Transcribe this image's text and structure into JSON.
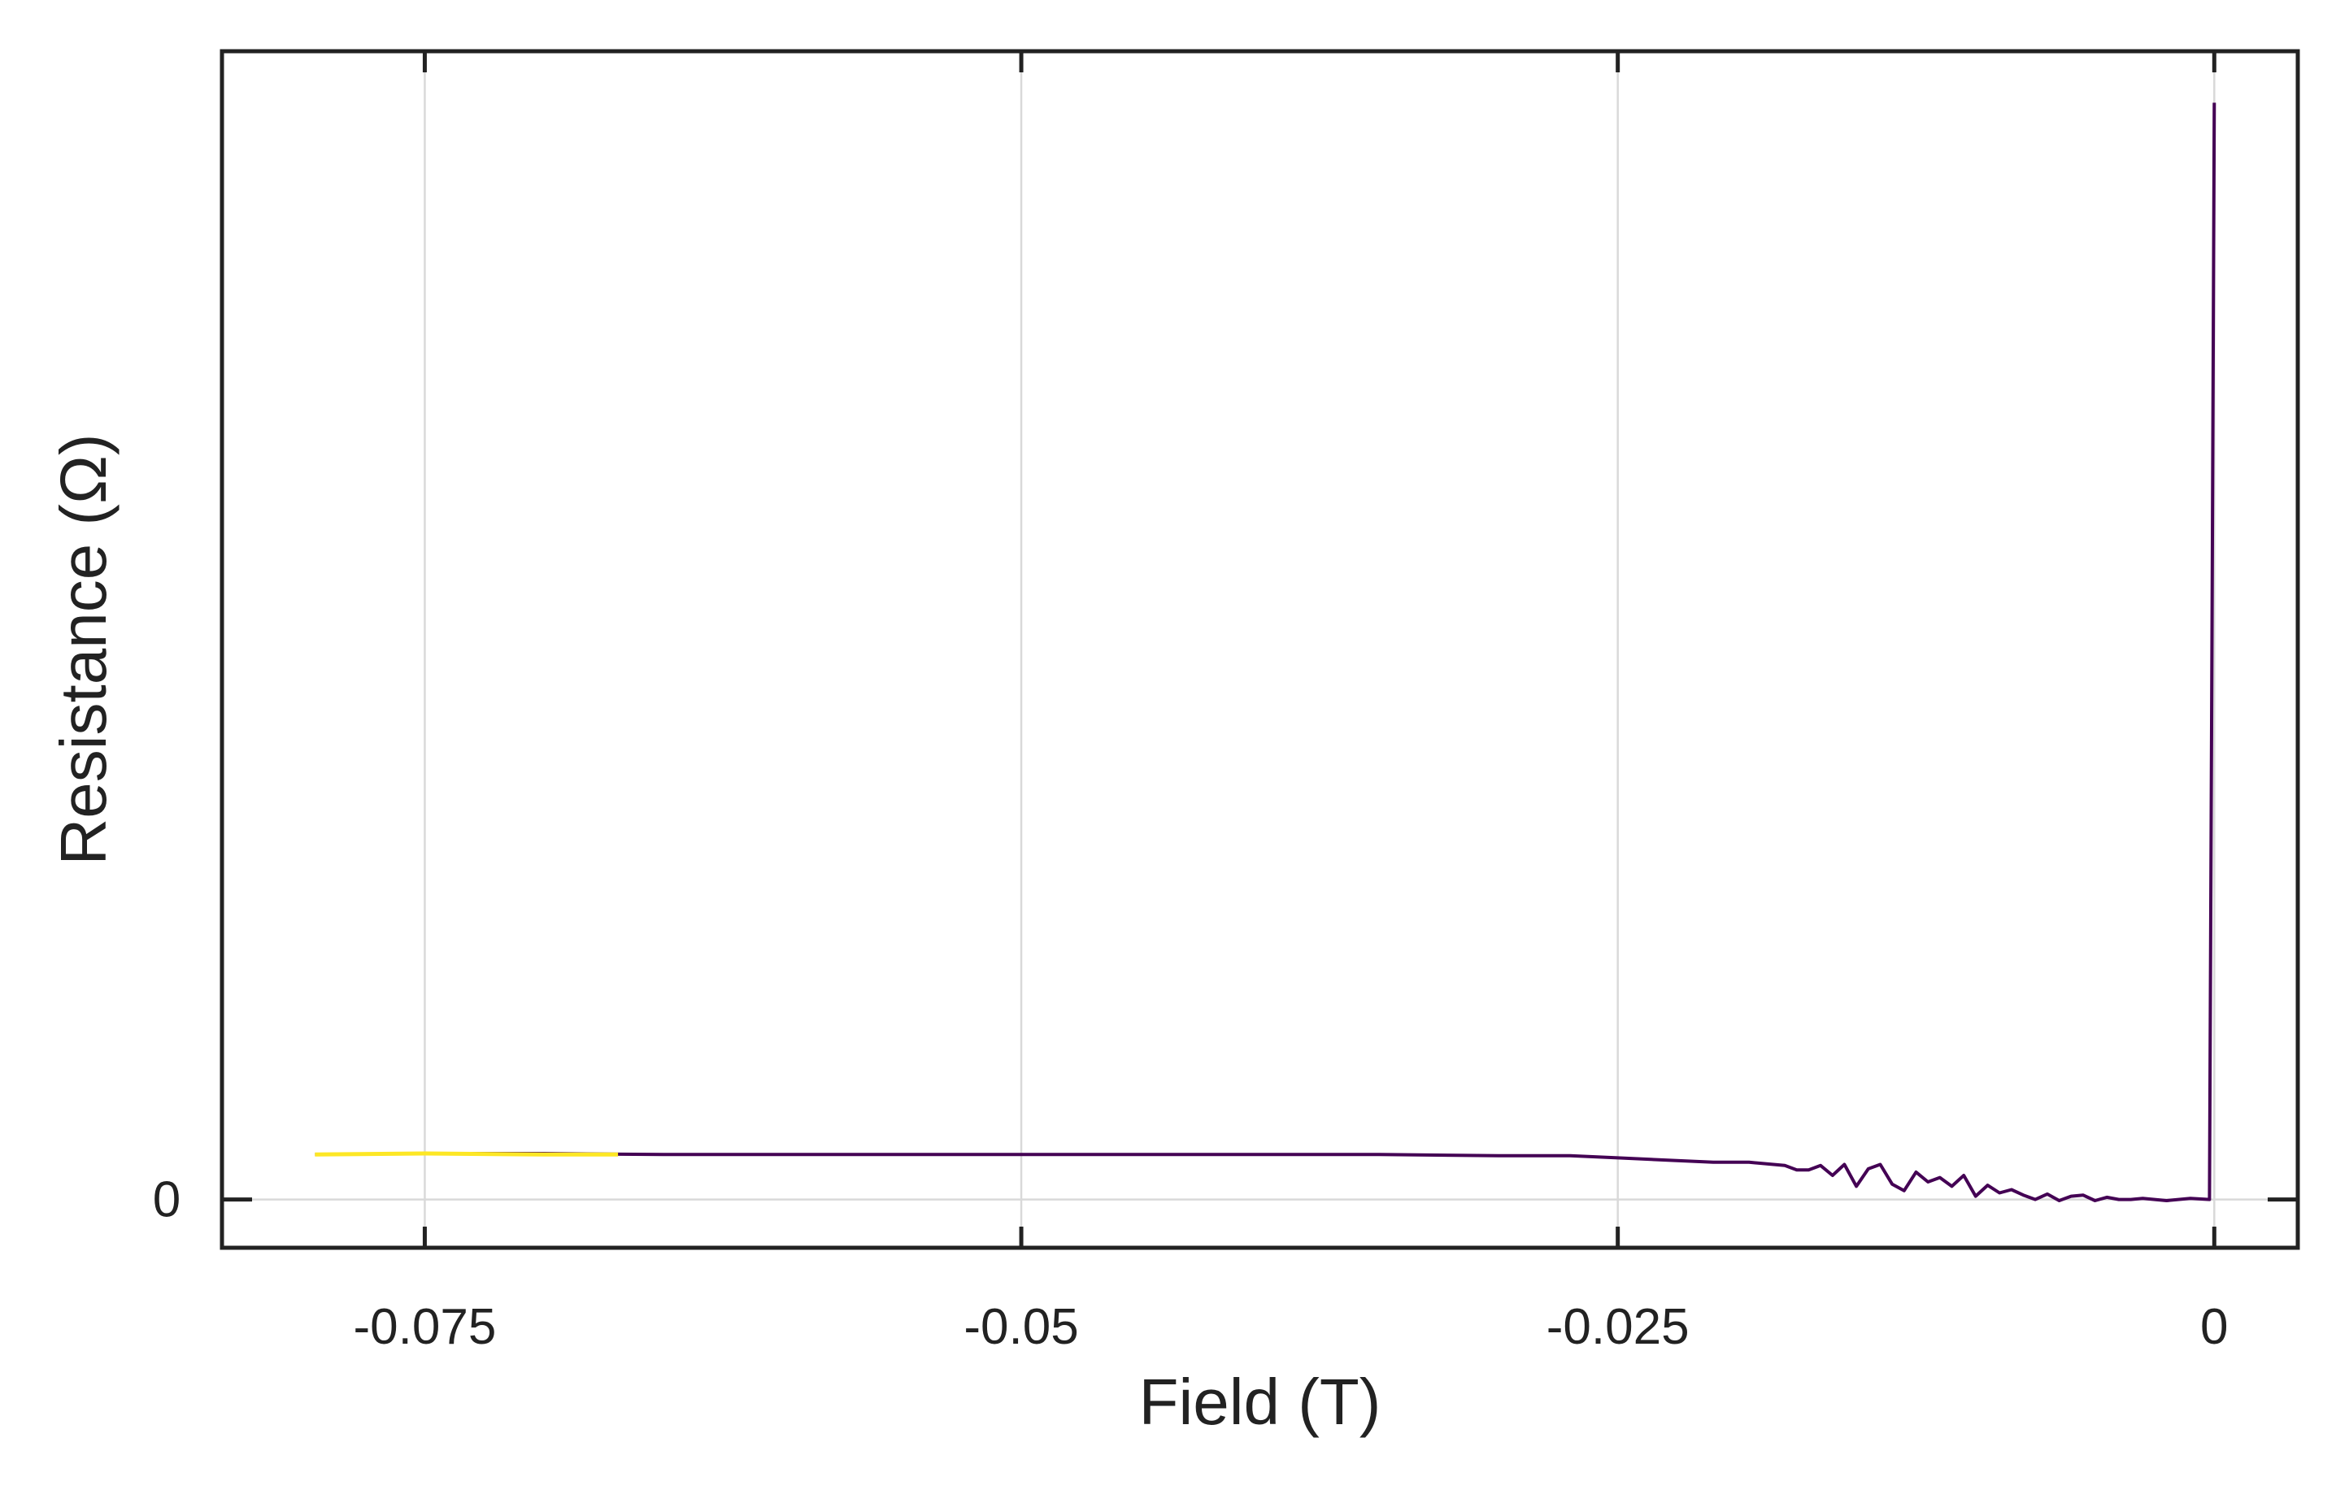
{
  "chart_data": {
    "type": "line",
    "title": "",
    "xlabel": "Field (T)",
    "ylabel": "Resistance (Ω)",
    "xlim": [
      -0.0835,
      0.0035
    ],
    "ylim": [
      -0.044,
      1.047
    ],
    "grid": true,
    "legend": "none",
    "x_ticks": [
      {
        "value": -0.075,
        "label": "-0.075"
      },
      {
        "value": -0.05,
        "label": "-0.05"
      },
      {
        "value": -0.025,
        "label": "-0.025"
      },
      {
        "value": 0,
        "label": "0"
      }
    ],
    "y_ticks": [
      {
        "value": 0,
        "label": "0"
      }
    ],
    "series": [
      {
        "color": "#440154",
        "x": [
          -0.0796,
          -0.075,
          -0.07,
          -0.065,
          -0.06,
          -0.055,
          -0.05,
          -0.045,
          -0.04,
          -0.035,
          -0.03,
          -0.027,
          -0.025,
          -0.023,
          -0.021,
          -0.0195,
          -0.018,
          -0.0175,
          -0.017,
          -0.0165,
          -0.016,
          -0.0155,
          -0.015,
          -0.0145,
          -0.014,
          -0.0135,
          -0.013,
          -0.0125,
          -0.012,
          -0.0115,
          -0.011,
          -0.0105,
          -0.01,
          -0.0095,
          -0.009,
          -0.0085,
          -0.008,
          -0.0075,
          -0.007,
          -0.0065,
          -0.006,
          -0.0055,
          -0.005,
          -0.0045,
          -0.004,
          -0.0035,
          -0.003,
          -0.002,
          -0.001,
          -0.0002,
          -0.0001,
          0
        ],
        "y": [
          0.041,
          0.042,
          0.042,
          0.041,
          0.041,
          0.041,
          0.041,
          0.041,
          0.041,
          0.041,
          0.04,
          0.04,
          0.038,
          0.036,
          0.034,
          0.034,
          0.031,
          0.027,
          0.027,
          0.031,
          0.022,
          0.032,
          0.012,
          0.028,
          0.032,
          0.014,
          0.008,
          0.025,
          0.016,
          0.02,
          0.012,
          0.022,
          0.003,
          0.013,
          0.006,
          0.009,
          0.004,
          0.0,
          0.005,
          -0.001,
          0.003,
          0.004,
          -0.001,
          0.002,
          0.0,
          0.0,
          0.001,
          -0.001,
          0.001,
          0.0,
          0.5,
          1.0
        ]
      },
      {
        "color": "#fde725",
        "x": [
          -0.0796,
          -0.075,
          -0.07,
          -0.0669
        ],
        "y": [
          0.041,
          0.042,
          0.041,
          0.041
        ]
      }
    ]
  }
}
